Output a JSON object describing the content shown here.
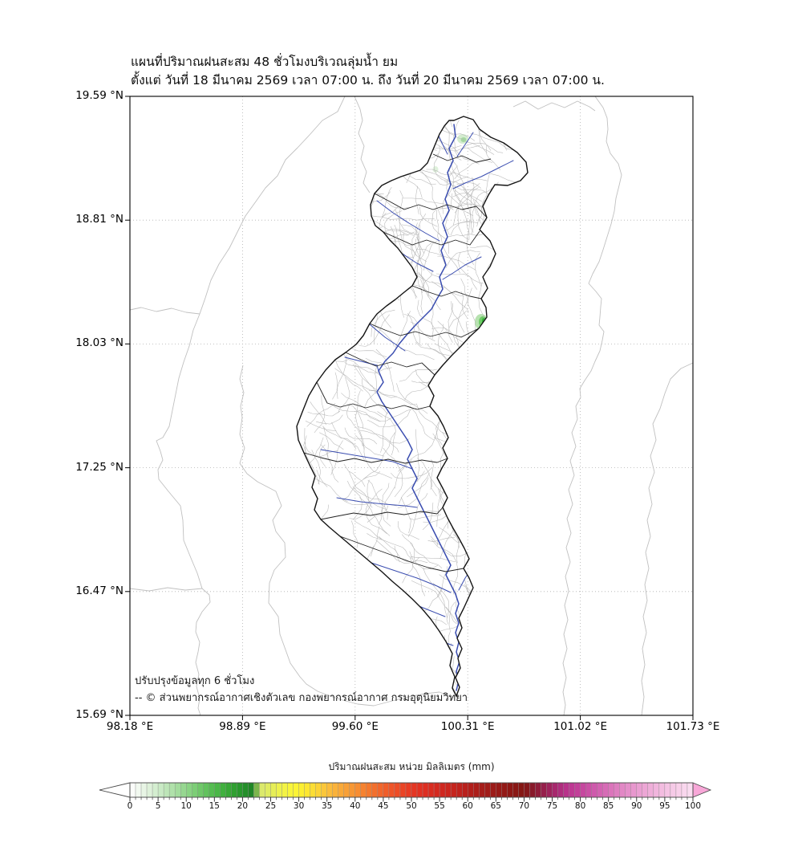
{
  "title": {
    "line1": "แผนที่ปริมาณฝนสะสม 48 ชั่วโมงบริเวณลุ่มน้ำ ยม",
    "line2": "ตั้งแต่ วันที่ 18 มีนาคม 2569 เวลา 07:00 น. ถึง วันที่ 20 มีนาคม 2569 เวลา 07:00 น."
  },
  "map": {
    "annotation": {
      "line1": "ปรับปรุงข้อมูลทุก 6 ชั่วโมง",
      "line2": "-- © ส่วนพยากรณ์อากาศเชิงตัวเลข กองพยากรณ์อากาศ กรมอุตุนิยมวิทยา"
    },
    "x_axis": {
      "ticks": [
        "98.18 °E",
        "98.89 °E",
        "99.60 °E",
        "100.31 °E",
        "101.02 °E",
        "101.73 °E"
      ]
    },
    "y_axis": {
      "ticks": [
        "19.59 °N",
        "18.81 °N",
        "18.03 °N",
        "17.25 °N",
        "16.47 °N",
        "15.69 °N"
      ]
    },
    "colors": {
      "basin_outline": "#141414",
      "subbasin_divider": "#222222",
      "river": "#3a4db0",
      "stream": "#b6b6b6",
      "province_boundary": "#c0c0c0",
      "gridline": "#b0b0b0",
      "rain_patch_light": "#cdeac8",
      "rain_patch_green": "#2fae33"
    }
  },
  "colorbar": {
    "title": "ปริมาณฝนสะสม หน่วย มิลลิเมตร (mm)",
    "tick_labels": [
      "0",
      "5",
      "10",
      "15",
      "20",
      "25",
      "30",
      "35",
      "40",
      "45",
      "50",
      "55",
      "60",
      "65",
      "70",
      "75",
      "80",
      "85",
      "90",
      "95",
      "100"
    ],
    "min": 0,
    "max": 100,
    "cell_step": 1,
    "under_color": "#ffffff",
    "over_color": "#f8a7d8",
    "stops": [
      [
        0,
        "#ffffff"
      ],
      [
        1,
        "#f7fbf5"
      ],
      [
        3,
        "#e3f3df"
      ],
      [
        5,
        "#cfeccb"
      ],
      [
        7,
        "#b7e3b1"
      ],
      [
        9,
        "#9cd996"
      ],
      [
        11,
        "#82d17c"
      ],
      [
        13,
        "#68c563"
      ],
      [
        15,
        "#4fba4b"
      ],
      [
        17,
        "#3bac39"
      ],
      [
        19,
        "#2c9c2e"
      ],
      [
        21,
        "#218a28"
      ],
      [
        22,
        "#1e8126"
      ],
      [
        23,
        "#d8e870"
      ],
      [
        25,
        "#e3ed5c"
      ],
      [
        27,
        "#f0f248"
      ],
      [
        29,
        "#faf636"
      ],
      [
        31,
        "#fdec31"
      ],
      [
        33,
        "#fcd936"
      ],
      [
        35,
        "#fbc13b"
      ],
      [
        37,
        "#f9ad3a"
      ],
      [
        40,
        "#f79233"
      ],
      [
        42,
        "#f57d2e"
      ],
      [
        45,
        "#f1612a"
      ],
      [
        47,
        "#ee5027"
      ],
      [
        50,
        "#e73823"
      ],
      [
        52,
        "#e02f21"
      ],
      [
        55,
        "#d2281f"
      ],
      [
        58,
        "#c4231d"
      ],
      [
        60,
        "#b51f1b"
      ],
      [
        62,
        "#a91d1a"
      ],
      [
        65,
        "#991a17"
      ],
      [
        68,
        "#8c1815"
      ],
      [
        70,
        "#821614"
      ],
      [
        72,
        "#8a1a31"
      ],
      [
        74,
        "#9a2153"
      ],
      [
        76,
        "#ab2a76"
      ],
      [
        78,
        "#bc3490"
      ],
      [
        80,
        "#c4439c"
      ],
      [
        82,
        "#cd55a9"
      ],
      [
        85,
        "#d96fb8"
      ],
      [
        87,
        "#e083c3"
      ],
      [
        90,
        "#e99bd0"
      ],
      [
        92,
        "#eeaad7"
      ],
      [
        95,
        "#f4c0e2"
      ],
      [
        97,
        "#f7cde8"
      ],
      [
        100,
        "#fbdff1"
      ]
    ]
  }
}
